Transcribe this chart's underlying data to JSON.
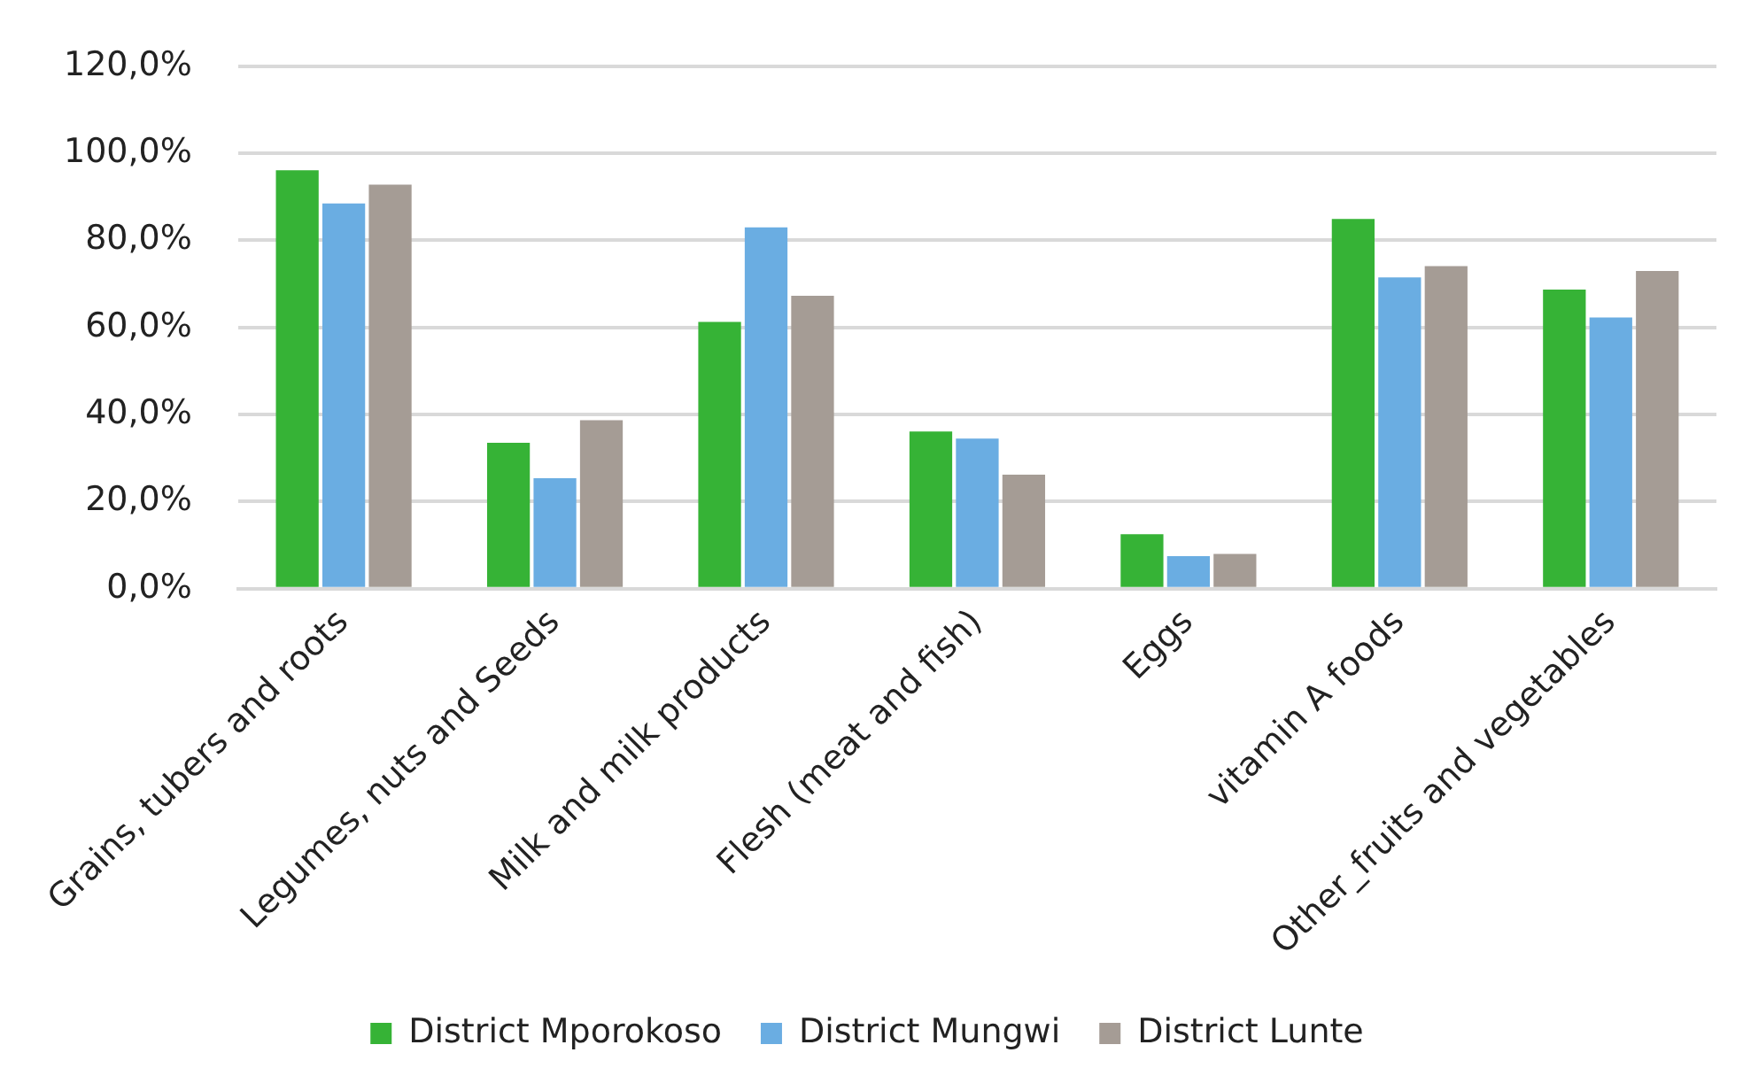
{
  "chart_data": {
    "type": "bar",
    "categories": [
      "Grains, tubers and roots",
      "Legumes, nuts and Seeds",
      "Milk and milk products",
      "Flesh (meat and fish)",
      "Eggs",
      "vitamin A foods",
      "Other_fruits and vegetables"
    ],
    "series": [
      {
        "name": "District Mporokoso",
        "color": "#36b336",
        "values": [
          96.1,
          33.5,
          61.3,
          36.1,
          12.5,
          84.9,
          68.7
        ]
      },
      {
        "name": "District Mungwi",
        "color": "#6aade2",
        "values": [
          88.5,
          25.4,
          83.0,
          34.5,
          7.5,
          71.5,
          62.3
        ]
      },
      {
        "name": "District Lunte",
        "color": "#a59c95",
        "values": [
          92.8,
          38.7,
          67.3,
          26.2,
          8.0,
          74.1,
          73.0
        ]
      }
    ],
    "ylim": [
      0,
      120
    ],
    "yticks": [
      {
        "value": 0,
        "label": "0,0%"
      },
      {
        "value": 20,
        "label": "20,0%"
      },
      {
        "value": 40,
        "label": "40,0%"
      },
      {
        "value": 60,
        "label": "60,0%"
      },
      {
        "value": 80,
        "label": "80,0%"
      },
      {
        "value": 100,
        "label": "100,0%"
      },
      {
        "value": 120,
        "label": "120,0%"
      }
    ],
    "grid": "y",
    "legend": "bottom"
  }
}
